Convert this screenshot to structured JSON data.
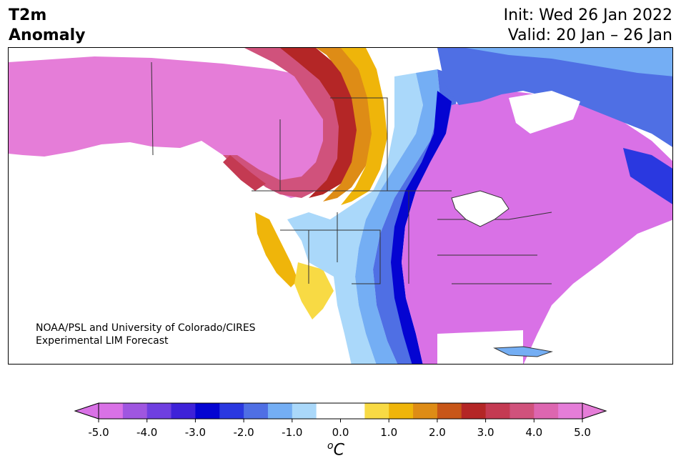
{
  "header": {
    "title_line1": "T2m",
    "title_line2": "Anomaly",
    "init_label": "Init: Wed 26 Jan 2022",
    "valid_label": "Valid: 20 Jan – 26 Jan"
  },
  "map": {
    "credit_line1": "NOAA/PSL and University of Colorado/CIRES",
    "credit_line2": "Experimental LIM Forecast"
  },
  "colorbar": {
    "ticks": [
      "-5.0",
      "-4.0",
      "-3.0",
      "-2.0",
      "-1.0",
      "0.0",
      "1.0",
      "2.0",
      "3.0",
      "4.0",
      "5.0"
    ],
    "unit_main": "C",
    "unit_sup": "o",
    "colors": [
      "#d971e6",
      "#9f56e0",
      "#6f3fe0",
      "#3e22d8",
      "#0404d2",
      "#2a38e0",
      "#4f6fe4",
      "#74aef4",
      "#aad8fa",
      "#ffffff",
      "#ffffff",
      "#f8da44",
      "#efb50a",
      "#de8c16",
      "#c85618",
      "#b42626",
      "#c43a52",
      "#d0527c",
      "#dd66b0",
      "#e57dd8"
    ],
    "min_color": "#d971e6",
    "max_color": "#e57dd8"
  }
}
